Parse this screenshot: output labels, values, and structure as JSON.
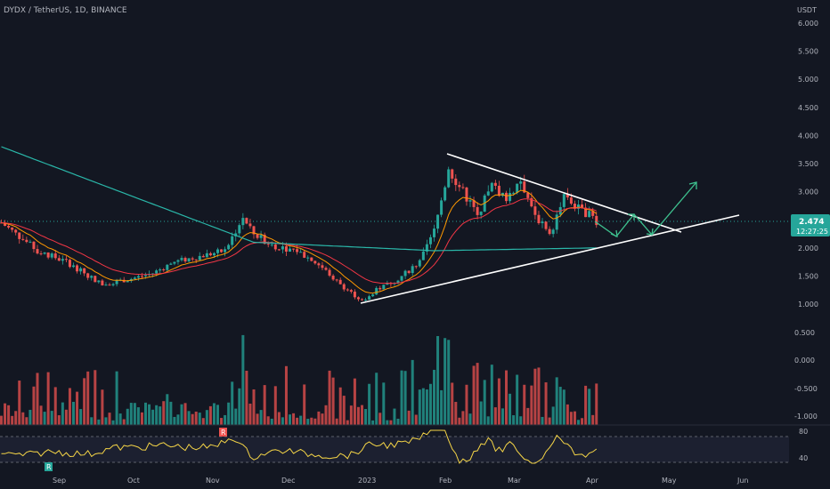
{
  "header": {
    "title": "DYDX / TetherUS, 1D, BINANCE"
  },
  "price_axis": {
    "unit": "USDT",
    "ticks": [
      "6.000",
      "5.500",
      "5.000",
      "4.500",
      "4.000",
      "3.500",
      "3.000",
      "2.500",
      "2.000",
      "1.500",
      "1.000"
    ]
  },
  "volume_axis": {
    "ticks": [
      "0.500",
      "0.000",
      "-0.500",
      "-1.000"
    ]
  },
  "rsi_axis": {
    "ticks": [
      "80",
      "40"
    ]
  },
  "last_price_badge": {
    "price": "2.474",
    "countdown": "12:27:25"
  },
  "time_axis": {
    "ticks": [
      "Sep",
      "Oct",
      "Nov",
      "Dec",
      "2023",
      "Feb",
      "Mar",
      "Apr",
      "May",
      "Jun"
    ]
  },
  "signal_markers": [
    "R",
    "R"
  ],
  "colors": {
    "up": "#26a69a",
    "down": "#ef5350",
    "ema_fast": "#f23645",
    "ema_slow": "#ff9800",
    "ma_long": "#2ab7a9",
    "rsi": "#f5d547",
    "trend": "#ffffff",
    "projection": "#3ec18f",
    "background": "#131722"
  },
  "chart_data": {
    "type": "candlestick",
    "symbol": "DYDX / TetherUS",
    "interval": "1D",
    "exchange": "BINANCE",
    "ylim": [
      1.0,
      6.0
    ],
    "x": [
      "Sep",
      "Oct",
      "Nov",
      "Dec",
      "2023",
      "Feb",
      "Mar",
      "Apr",
      "May",
      "Jun"
    ],
    "last_price": 2.474,
    "approx_closes": [
      {
        "date": "Aug",
        "close": 2.45
      },
      {
        "date": "Sep",
        "close": 1.95
      },
      {
        "date": "Oct",
        "close": 1.45
      },
      {
        "date": "Nov",
        "close": 2.45
      },
      {
        "date": "Dec",
        "close": 1.85
      },
      {
        "date": "2023",
        "close": 1.25
      },
      {
        "date": "Feb",
        "close": 3.3
      },
      {
        "date": "Mar",
        "close": 2.8
      },
      {
        "date": "Apr",
        "close": 2.474
      }
    ],
    "annotations": [
      {
        "type": "triangle-upper-trendline",
        "from": {
          "date": "Feb",
          "price": 3.7
        },
        "to": {
          "date": "Apr-late",
          "price": 2.2
        }
      },
      {
        "type": "triangle-lower-trendline",
        "from": {
          "date": "2023",
          "price": 1.0
        },
        "to": {
          "date": "May",
          "price": 2.6
        }
      },
      {
        "type": "projection-arrow",
        "direction": "up-breakout",
        "target_price": 3.2
      }
    ]
  }
}
